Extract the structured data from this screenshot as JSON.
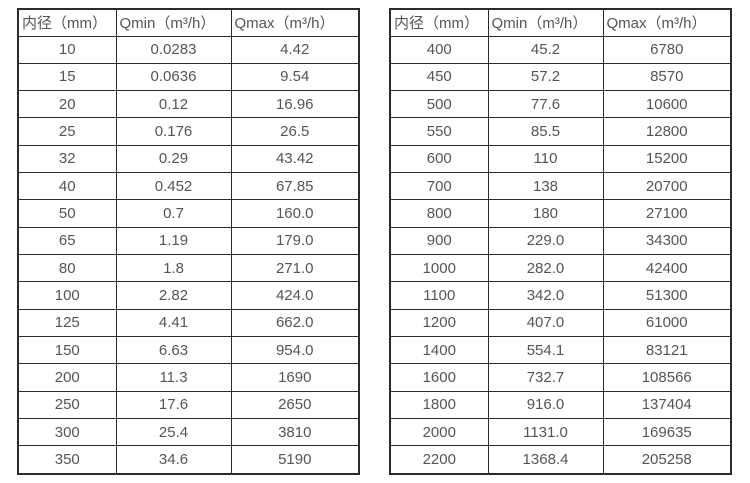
{
  "colors": {
    "background": "#ffffff",
    "border": "#2b2b2b",
    "text": "#555555"
  },
  "headers": {
    "diameter": "内径（mm）",
    "qmin": "Qmin（m³/h）",
    "qmax": "Qmax（m³/h）"
  },
  "tables": [
    {
      "name": "flow-table-small-diameters",
      "rows": [
        [
          "10",
          "0.0283",
          "4.42"
        ],
        [
          "15",
          "0.0636",
          "9.54"
        ],
        [
          "20",
          "0.12",
          "16.96"
        ],
        [
          "25",
          "0.176",
          "26.5"
        ],
        [
          "32",
          "0.29",
          "43.42"
        ],
        [
          "40",
          "0.452",
          "67.85"
        ],
        [
          "50",
          "0.7",
          "160.0"
        ],
        [
          "65",
          "1.19",
          "179.0"
        ],
        [
          "80",
          "1.8",
          "271.0"
        ],
        [
          "100",
          "2.82",
          "424.0"
        ],
        [
          "125",
          "4.41",
          "662.0"
        ],
        [
          "150",
          "6.63",
          "954.0"
        ],
        [
          "200",
          "11.3",
          "1690"
        ],
        [
          "250",
          "17.6",
          "2650"
        ],
        [
          "300",
          "25.4",
          "3810"
        ],
        [
          "350",
          "34.6",
          "5190"
        ]
      ]
    },
    {
      "name": "flow-table-large-diameters",
      "rows": [
        [
          "400",
          "45.2",
          "6780"
        ],
        [
          "450",
          "57.2",
          "8570"
        ],
        [
          "500",
          "77.6",
          "10600"
        ],
        [
          "550",
          "85.5",
          "12800"
        ],
        [
          "600",
          "110",
          "15200"
        ],
        [
          "700",
          "138",
          "20700"
        ],
        [
          "800",
          "180",
          "27100"
        ],
        [
          "900",
          "229.0",
          "34300"
        ],
        [
          "1000",
          "282.0",
          "42400"
        ],
        [
          "1100",
          "342.0",
          "51300"
        ],
        [
          "1200",
          "407.0",
          "61000"
        ],
        [
          "1400",
          "554.1",
          "83121"
        ],
        [
          "1600",
          "732.7",
          "108566"
        ],
        [
          "1800",
          "916.0",
          "137404"
        ],
        [
          "2000",
          "1131.0",
          "169635"
        ],
        [
          "2200",
          "1368.4",
          "205258"
        ]
      ]
    }
  ]
}
